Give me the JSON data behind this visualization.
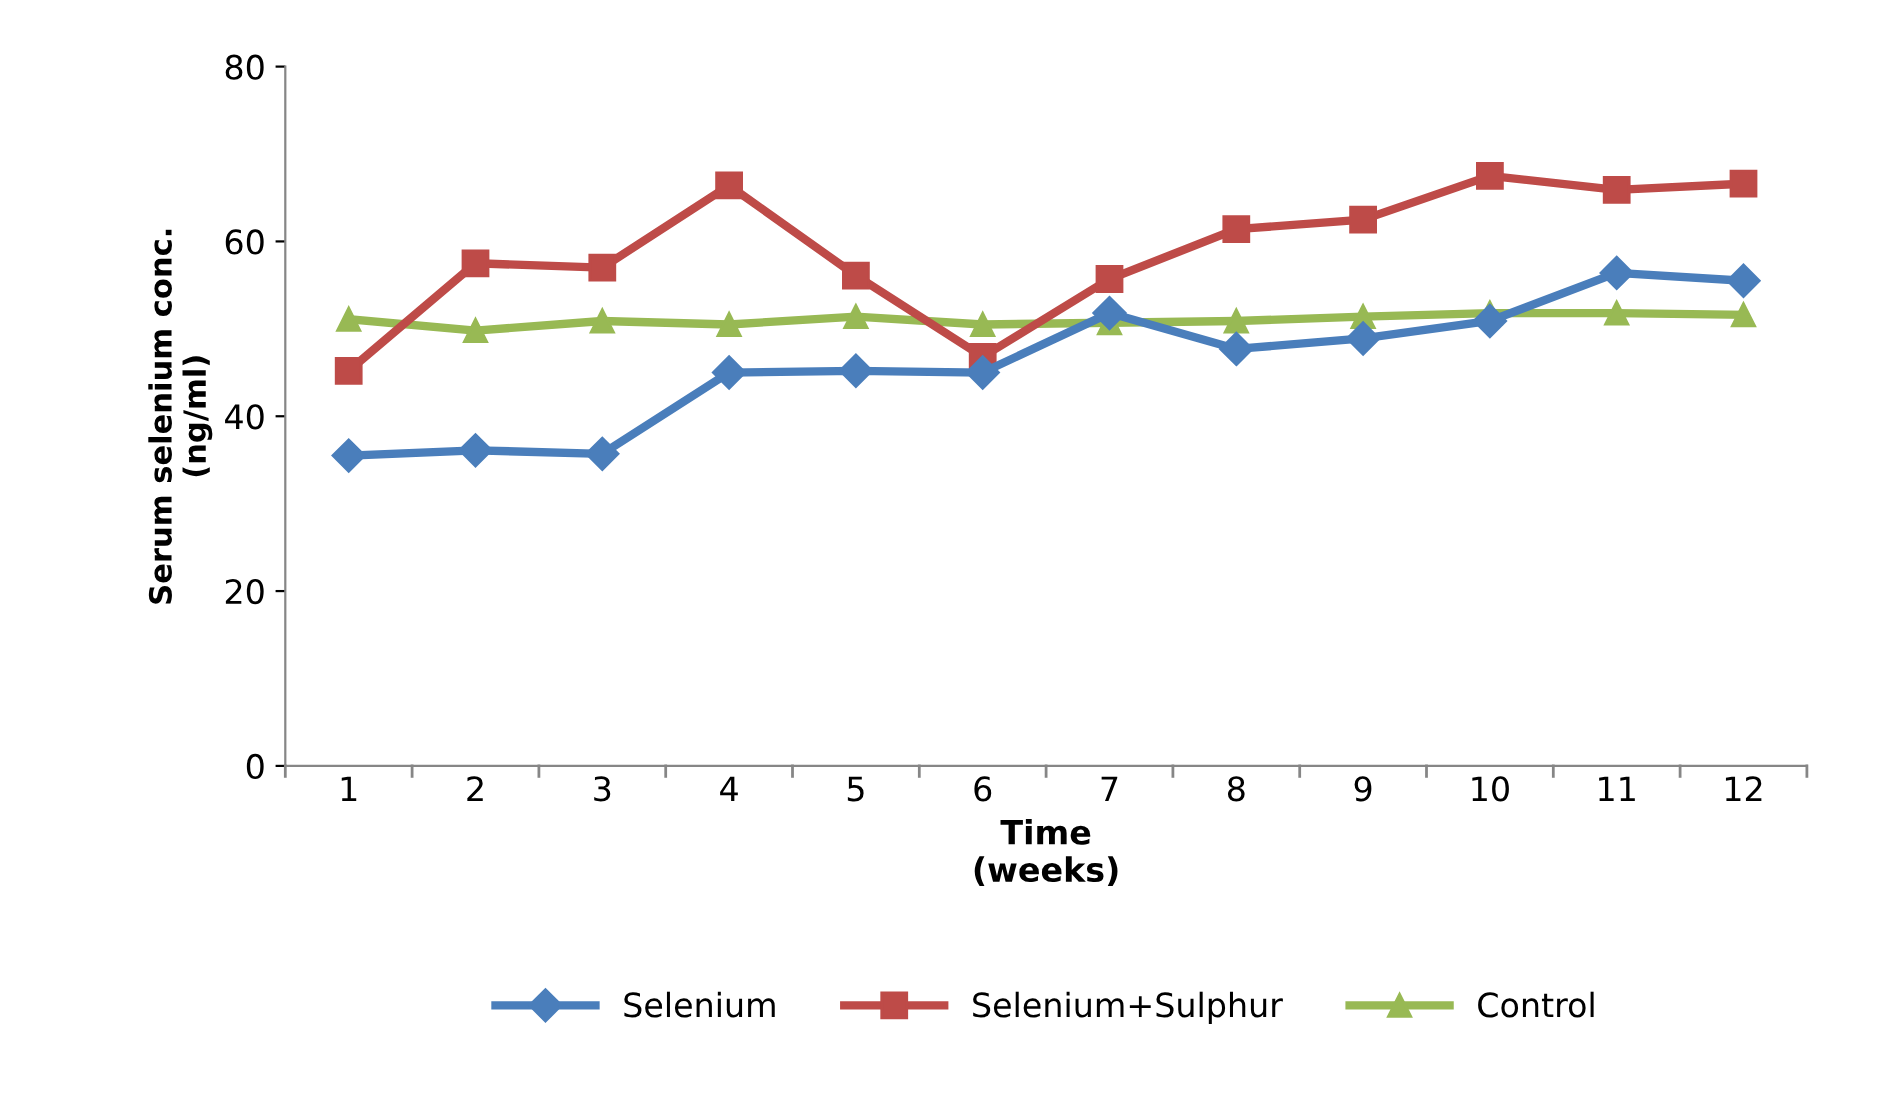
{
  "chart_data": {
    "type": "line",
    "xlabel": "Time\n(weeks)",
    "ylabel": "Serum selenium conc.\n(ng/ml)",
    "categories": [
      "1",
      "2",
      "3",
      "4",
      "5",
      "6",
      "7",
      "8",
      "9",
      "10",
      "11",
      "12"
    ],
    "series": [
      {
        "name": "Selenium",
        "color": "#4a7ebb",
        "marker": "diamond",
        "values": [
          35.5,
          36.1,
          35.7,
          45.0,
          45.2,
          45.0,
          51.8,
          47.7,
          48.9,
          50.9,
          56.4,
          55.5
        ]
      },
      {
        "name": "Selenium+Sulphur",
        "color": "#be4b48",
        "marker": "square",
        "values": [
          45.2,
          57.5,
          57.0,
          66.4,
          56.1,
          46.8,
          55.7,
          61.4,
          62.5,
          67.5,
          65.9,
          66.6
        ]
      },
      {
        "name": "Control",
        "color": "#98b954",
        "marker": "triangle",
        "values": [
          51.1,
          49.8,
          50.9,
          50.5,
          51.4,
          50.5,
          50.7,
          50.9,
          51.4,
          51.8,
          51.8,
          51.6
        ]
      }
    ],
    "ylim": [
      0,
      80
    ],
    "yticks": [
      0,
      20,
      40,
      60,
      80
    ],
    "grid": false,
    "legend": "bottom",
    "line_style": "solid"
  }
}
